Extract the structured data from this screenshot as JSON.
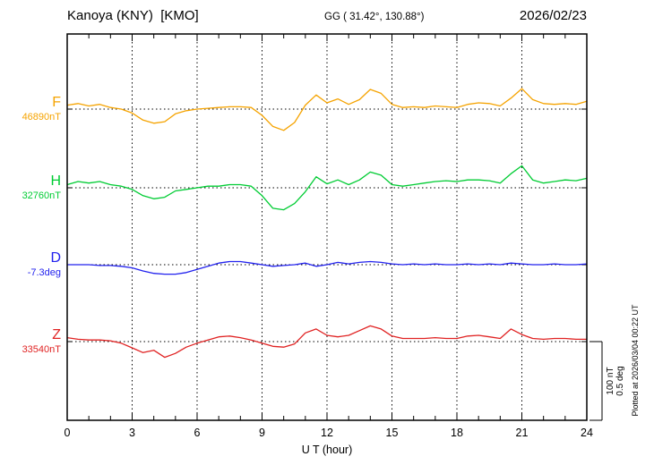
{
  "header": {
    "station_title": "Kanoya (KNY)  [KMO]",
    "coords": "GG ( 31.42°, 130.88°)",
    "date": "2026/02/23"
  },
  "scale_bar": {
    "label_nt": "100 nT",
    "label_deg": "0.5 deg"
  },
  "footer_note": "Plotted at 2026/03/04 00:22 UT",
  "chart_data": {
    "type": "line",
    "xlabel": "U T (hour)",
    "x_tick_labels": [
      "0",
      "3",
      "6",
      "9",
      "12",
      "15",
      "18",
      "21",
      "24"
    ],
    "x_range": [
      0,
      24
    ],
    "x_step_hours": 0.5,
    "grid": {
      "vertical_dotted_every_hours": 3,
      "horizontal_dotted_baselines": true
    },
    "scale": {
      "nT_per_division": 100,
      "deg_per_division": 0.5
    },
    "series": [
      {
        "name": "F",
        "label": "F",
        "baseline_label": "46890nT",
        "baseline_value": 46890,
        "unit": "nT",
        "color": "#f5a300",
        "offsets": [
          5,
          7,
          4,
          6,
          2,
          0,
          -5,
          -14,
          -18,
          -16,
          -6,
          -2,
          0,
          1,
          2,
          3,
          3,
          2,
          -8,
          -22,
          -27,
          -17,
          5,
          18,
          8,
          13,
          6,
          12,
          25,
          20,
          6,
          2,
          3,
          2,
          4,
          3,
          2,
          6,
          8,
          7,
          4,
          14,
          26,
          12,
          7,
          6,
          7,
          6,
          10
        ]
      },
      {
        "name": "H",
        "label": "H",
        "baseline_label": "32760nT",
        "baseline_value": 32760,
        "unit": "nT",
        "color": "#00cc33",
        "offsets": [
          4,
          8,
          6,
          8,
          4,
          2,
          -2,
          -10,
          -14,
          -12,
          -4,
          -2,
          0,
          2,
          2,
          4,
          4,
          2,
          -10,
          -26,
          -28,
          -20,
          -5,
          14,
          5,
          10,
          4,
          10,
          20,
          16,
          4,
          2,
          4,
          6,
          8,
          9,
          8,
          10,
          10,
          9,
          6,
          18,
          28,
          10,
          6,
          8,
          10,
          9,
          12
        ]
      },
      {
        "name": "D",
        "label": "D",
        "baseline_label": "-7.3deg",
        "baseline_value": -7.3,
        "unit": "deg",
        "color": "#2222ee",
        "offsets": [
          0,
          0,
          0,
          -0.005,
          -0.005,
          -0.01,
          -0.02,
          -0.04,
          -0.055,
          -0.06,
          -0.06,
          -0.05,
          -0.03,
          -0.01,
          0.01,
          0.02,
          0.02,
          0.01,
          0,
          -0.01,
          -0.005,
          0,
          0.01,
          -0.01,
          0,
          0.015,
          0.005,
          0.015,
          0.02,
          0.015,
          0.005,
          0,
          0.005,
          0,
          0.005,
          0,
          0,
          0.005,
          0,
          0.005,
          0,
          0.01,
          0.005,
          0,
          0,
          0.005,
          0,
          0,
          0.005
        ]
      },
      {
        "name": "Z",
        "label": "Z",
        "baseline_label": "33540nT",
        "baseline_value": 33540,
        "unit": "nT",
        "color": "#e02222",
        "offsets": [
          5,
          3,
          2,
          2,
          1,
          -2,
          -8,
          -14,
          -11,
          -20,
          -15,
          -7,
          -2,
          2,
          6,
          7,
          5,
          2,
          -2,
          -6,
          -7,
          -3,
          11,
          16,
          8,
          6,
          8,
          14,
          20,
          16,
          7,
          4,
          4,
          4,
          5,
          4,
          4,
          7,
          8,
          6,
          4,
          16,
          9,
          4,
          3,
          4,
          4,
          3,
          3
        ]
      }
    ]
  }
}
